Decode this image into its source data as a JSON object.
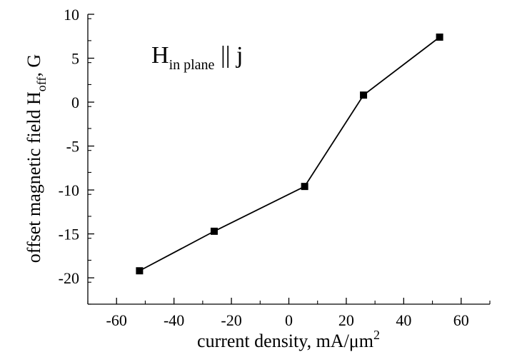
{
  "chart_data": {
    "type": "line",
    "title": "",
    "xlabel": "current density, mA/μm",
    "xlabel_superscript": "2",
    "ylabel_prefix": "offset magnetic field H",
    "ylabel_subscript": "off",
    "ylabel_suffix": ", G",
    "annotation": {
      "main": "H",
      "subscript": "in plane",
      "suffix": " || j"
    },
    "xlim": [
      -70,
      70
    ],
    "ylim": [
      -23,
      10
    ],
    "xticks": [
      -60,
      -40,
      -20,
      0,
      20,
      40,
      60
    ],
    "yticks": [
      -20,
      -15,
      -10,
      -5,
      0,
      5,
      10
    ],
    "xtick_labels": [
      "-60",
      "-40",
      "-20",
      "0",
      "20",
      "40",
      "60"
    ],
    "ytick_labels": [
      "-20",
      "-15",
      "-10",
      "-5",
      "0",
      "5",
      "10"
    ],
    "grid": false,
    "marker": "square",
    "line_color": "#000000",
    "series": [
      {
        "x": [
          -52,
          -26,
          5.5,
          26,
          52.5
        ],
        "y": [
          -19.2,
          -14.7,
          -9.6,
          0.8,
          7.4
        ]
      }
    ]
  }
}
